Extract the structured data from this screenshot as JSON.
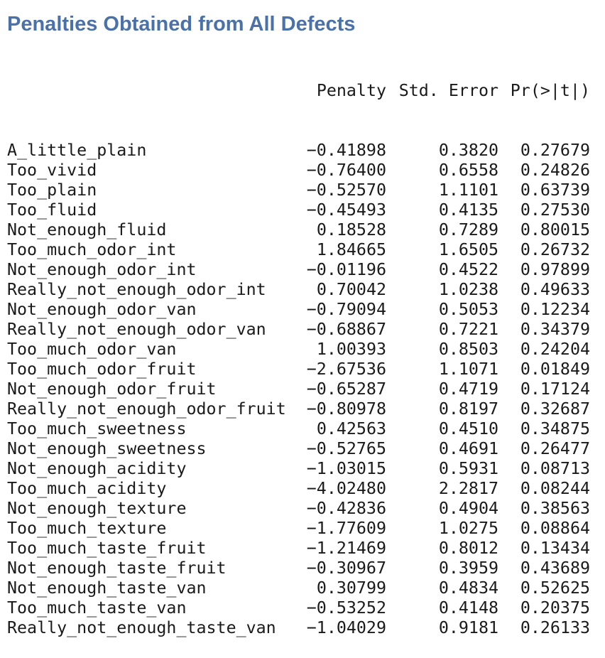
{
  "title": "Penalties Obtained from All Defects",
  "table": {
    "headers": {
      "name": "",
      "penalty": "Penalty",
      "std_error": "Std. Error",
      "p_value": "Pr(>|t|)"
    },
    "rows": [
      {
        "name": "A_little_plain",
        "penalty": "−0.41898",
        "std_error": "0.3820",
        "p_value": "0.27679"
      },
      {
        "name": "Too_vivid",
        "penalty": "−0.76400",
        "std_error": "0.6558",
        "p_value": "0.24826"
      },
      {
        "name": "Too_plain",
        "penalty": "−0.52570",
        "std_error": "1.1101",
        "p_value": "0.63739"
      },
      {
        "name": "Too_fluid",
        "penalty": "−0.45493",
        "std_error": "0.4135",
        "p_value": "0.27530"
      },
      {
        "name": "Not_enough_fluid",
        "penalty": "0.18528",
        "std_error": "0.7289",
        "p_value": "0.80015"
      },
      {
        "name": "Too_much_odor_int",
        "penalty": "1.84665",
        "std_error": "1.6505",
        "p_value": "0.26732"
      },
      {
        "name": "Not_enough_odor_int",
        "penalty": "−0.01196",
        "std_error": "0.4522",
        "p_value": "0.97899"
      },
      {
        "name": "Really_not_enough_odor_int",
        "penalty": "0.70042",
        "std_error": "1.0238",
        "p_value": "0.49633"
      },
      {
        "name": "Not_enough_odor_van",
        "penalty": "−0.79094",
        "std_error": "0.5053",
        "p_value": "0.12234"
      },
      {
        "name": "Really_not_enough_odor_van",
        "penalty": "−0.68867",
        "std_error": "0.7221",
        "p_value": "0.34379"
      },
      {
        "name": "Too_much_odor_van",
        "penalty": "1.00393",
        "std_error": "0.8503",
        "p_value": "0.24204"
      },
      {
        "name": "Too_much_odor_fruit",
        "penalty": "−2.67536",
        "std_error": "1.1071",
        "p_value": "0.01849"
      },
      {
        "name": "Not_enough_odor_fruit",
        "penalty": "−0.65287",
        "std_error": "0.4719",
        "p_value": "0.17124"
      },
      {
        "name": "Really_not_enough_odor_fruit",
        "penalty": "−0.80978",
        "std_error": "0.8197",
        "p_value": "0.32687"
      },
      {
        "name": "Too_much_sweetness",
        "penalty": "0.42563",
        "std_error": "0.4510",
        "p_value": "0.34875"
      },
      {
        "name": "Not_enough_sweetness",
        "penalty": "−0.52765",
        "std_error": "0.4691",
        "p_value": "0.26477"
      },
      {
        "name": "Not_enough_acidity",
        "penalty": "−1.03015",
        "std_error": "0.5931",
        "p_value": "0.08713"
      },
      {
        "name": "Too_much_acidity",
        "penalty": "−4.02480",
        "std_error": "2.2817",
        "p_value": "0.08244"
      },
      {
        "name": "Not_enough_texture",
        "penalty": "−0.42836",
        "std_error": "0.4904",
        "p_value": "0.38563"
      },
      {
        "name": "Too_much_texture",
        "penalty": "−1.77609",
        "std_error": "1.0275",
        "p_value": "0.08864"
      },
      {
        "name": "Too_much_taste_fruit",
        "penalty": "−1.21469",
        "std_error": "0.8012",
        "p_value": "0.13434"
      },
      {
        "name": "Not_enough_taste_fruit",
        "penalty": "−0.30967",
        "std_error": "0.3959",
        "p_value": "0.43689"
      },
      {
        "name": "Not_enough_taste_van",
        "penalty": "0.30799",
        "std_error": "0.4834",
        "p_value": "0.52625"
      },
      {
        "name": "Too_much_taste_van",
        "penalty": "−0.53252",
        "std_error": "0.4148",
        "p_value": "0.20375"
      },
      {
        "name": "Really_not_enough_taste_van",
        "penalty": "−1.04029",
        "std_error": "0.9181",
        "p_value": "0.26133"
      }
    ]
  }
}
